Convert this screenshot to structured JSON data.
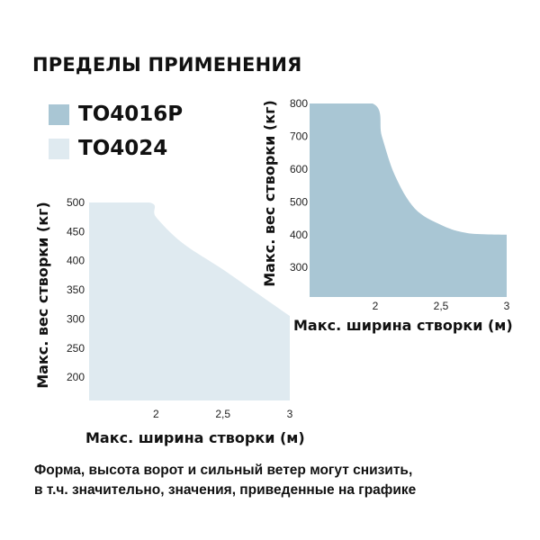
{
  "title": "ПРЕДЕЛЫ ПРИМЕНЕНИЯ",
  "legend": [
    {
      "label": "TO4016P",
      "color": "#a9c6d4"
    },
    {
      "label": "TO4024",
      "color": "#dfeaf0"
    }
  ],
  "note": {
    "line1": "Форма, высота ворот и сильный ветер могут снизить,",
    "line2": "в т.ч. значительно, значения, приведенные на графике"
  },
  "chart_data": [
    {
      "type": "area",
      "series_name": "TO4016P",
      "color": "#a9c6d4",
      "xlabel": "Макс. ширина створки (м)",
      "ylabel": "Макс. вес створки (кг)",
      "xlim": [
        1.5,
        3.0
      ],
      "ylim": [
        210,
        800
      ],
      "x_ticks": [
        "2",
        "2,5",
        "3"
      ],
      "y_ticks": [
        "800",
        "700",
        "600",
        "500",
        "400",
        "300"
      ],
      "x": [
        1.5,
        1.98,
        2.05,
        2.15,
        2.3,
        2.5,
        2.7,
        3.0
      ],
      "y": [
        800,
        800,
        700,
        580,
        480,
        430,
        405,
        400
      ]
    },
    {
      "type": "area",
      "series_name": "TO4024",
      "color": "#dfeaf0",
      "xlabel": "Макс. ширина створки (м)",
      "ylabel": "Макс. вес створки (кг)",
      "xlim": [
        1.5,
        3.0
      ],
      "ylim": [
        160,
        500
      ],
      "x_ticks": [
        "2",
        "2,5",
        "3"
      ],
      "y_ticks": [
        "500",
        "450",
        "400",
        "350",
        "300",
        "250",
        "200"
      ],
      "x": [
        1.5,
        1.95,
        2.0,
        2.2,
        2.5,
        2.75,
        3.0
      ],
      "y": [
        500,
        500,
        475,
        430,
        385,
        345,
        305
      ]
    }
  ]
}
